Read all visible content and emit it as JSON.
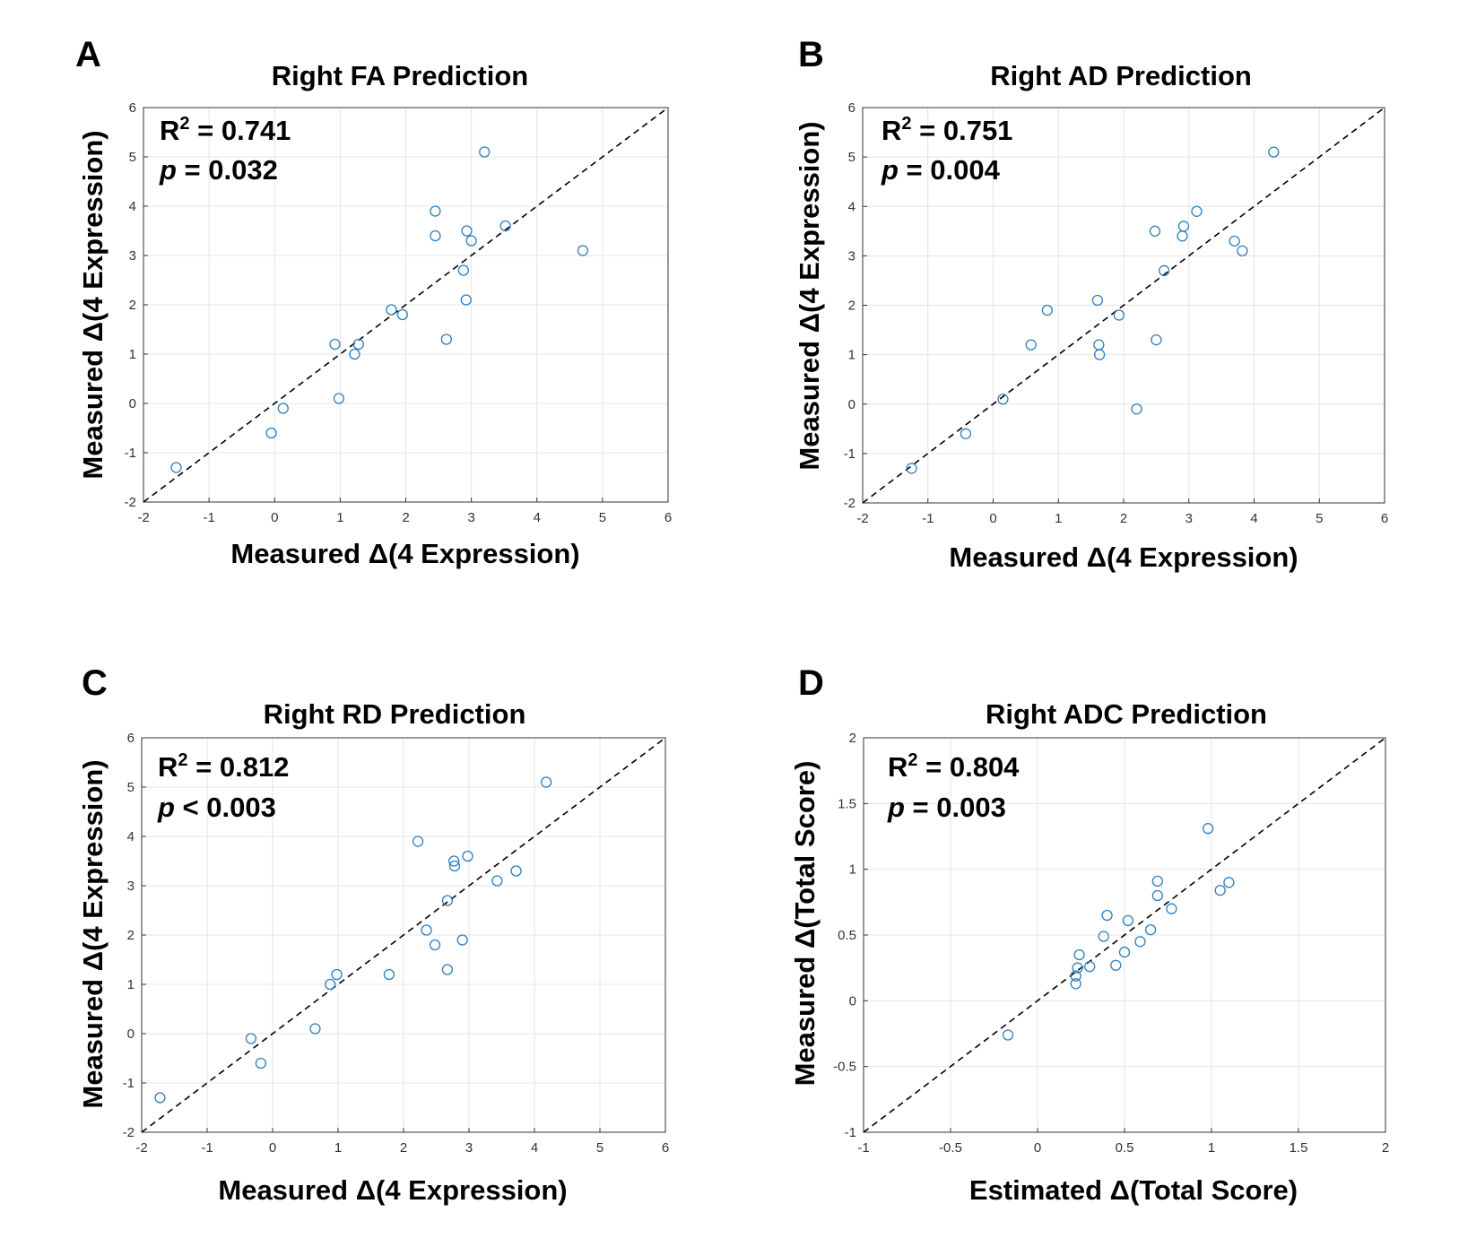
{
  "chart_data": [
    {
      "panel": "A",
      "type": "scatter",
      "title": "Right FA Prediction",
      "xlabel": "Measured Δ(4 Expression)",
      "ylabel": "Measured Δ(4 Expression)",
      "xlim": [
        -2,
        6
      ],
      "ylim": [
        -2,
        6
      ],
      "xticks": [
        -2,
        -1,
        0,
        1,
        2,
        3,
        4,
        5,
        6
      ],
      "yticks": [
        -2,
        -1,
        0,
        1,
        2,
        3,
        4,
        5,
        6
      ],
      "xtick_labels": [
        "-2",
        "-1",
        "0",
        "1",
        "2",
        "3",
        "4",
        "5",
        "6"
      ],
      "ytick_labels": [
        "-2",
        "-1",
        "0",
        "1",
        "2",
        "3",
        "4",
        "5",
        "6"
      ],
      "grid": true,
      "reference_line": "y = x (dashed)",
      "stats": {
        "r2_label": "R",
        "r2_sup": "2",
        "r2_value": " = 0.741",
        "p_label": "p",
        "p_value": " = 0.032"
      },
      "x": [
        -1.5,
        -0.05,
        0.13,
        0.92,
        0.98,
        1.22,
        1.28,
        1.78,
        1.95,
        2.45,
        2.45,
        2.62,
        2.88,
        2.92,
        2.93,
        3.0,
        3.2,
        3.52,
        4.7
      ],
      "y": [
        -1.3,
        -0.6,
        -0.1,
        1.2,
        0.1,
        1.0,
        1.2,
        1.9,
        1.8,
        3.9,
        3.4,
        1.3,
        2.7,
        2.1,
        3.5,
        3.3,
        5.1,
        3.6,
        3.1
      ]
    },
    {
      "panel": "B",
      "type": "scatter",
      "title": "Right AD Prediction",
      "xlabel": "Measured Δ(4 Expression)",
      "ylabel": "Measured Δ(4 Expression)",
      "xlim": [
        -2,
        6
      ],
      "ylim": [
        -2,
        6
      ],
      "xticks": [
        -2,
        -1,
        0,
        1,
        2,
        3,
        4,
        5,
        6
      ],
      "yticks": [
        -2,
        -1,
        0,
        1,
        2,
        3,
        4,
        5,
        6
      ],
      "xtick_labels": [
        "-2",
        "-1",
        "0",
        "1",
        "2",
        "3",
        "4",
        "5",
        "6"
      ],
      "ytick_labels": [
        "-2",
        "-1",
        "0",
        "1",
        "2",
        "3",
        "4",
        "5",
        "6"
      ],
      "grid": true,
      "reference_line": "y = x (dashed)",
      "stats": {
        "r2_label": "R",
        "r2_sup": "2",
        "r2_value": " = 0.751",
        "p_label": "p",
        "p_value": " = 0.004"
      },
      "x": [
        -1.25,
        -0.42,
        0.15,
        0.58,
        0.83,
        1.6,
        1.62,
        1.63,
        1.93,
        2.2,
        2.48,
        2.5,
        2.62,
        2.9,
        2.92,
        3.12,
        3.7,
        3.82,
        4.3
      ],
      "y": [
        -1.3,
        -0.6,
        0.1,
        1.2,
        1.9,
        2.1,
        1.2,
        1.0,
        1.8,
        -0.1,
        3.5,
        1.3,
        2.7,
        3.4,
        3.6,
        3.9,
        3.3,
        3.1,
        5.1
      ]
    },
    {
      "panel": "C",
      "type": "scatter",
      "title": "Right RD Prediction",
      "xlabel": "Measured Δ(4 Expression)",
      "ylabel": "Measured Δ(4 Expression)",
      "xlim": [
        -2,
        6
      ],
      "ylim": [
        -2,
        6
      ],
      "xticks": [
        -2,
        -1,
        0,
        1,
        2,
        3,
        4,
        5,
        6
      ],
      "yticks": [
        -2,
        -1,
        0,
        1,
        2,
        3,
        4,
        5,
        6
      ],
      "xtick_labels": [
        "-2",
        "-1",
        "0",
        "1",
        "2",
        "3",
        "4",
        "5",
        "6"
      ],
      "ytick_labels": [
        "-2",
        "-1",
        "0",
        "1",
        "2",
        "3",
        "4",
        "5",
        "6"
      ],
      "grid": true,
      "reference_line": "y = x (dashed)",
      "stats": {
        "r2_label": "R",
        "r2_sup": "2",
        "r2_value": " = 0.812",
        "p_label": "p",
        "p_value": " < 0.003"
      },
      "x": [
        -1.72,
        -0.33,
        -0.18,
        0.65,
        0.88,
        0.98,
        1.78,
        2.22,
        2.35,
        2.48,
        2.67,
        2.67,
        2.77,
        2.78,
        2.9,
        2.98,
        3.43,
        3.72,
        4.18
      ],
      "y": [
        -1.3,
        -0.1,
        -0.6,
        0.1,
        1.0,
        1.2,
        1.2,
        3.9,
        2.1,
        1.8,
        1.3,
        2.7,
        3.5,
        3.4,
        1.9,
        3.6,
        3.1,
        3.3,
        5.1
      ]
    },
    {
      "panel": "D",
      "type": "scatter",
      "title": "Right ADC Prediction",
      "xlabel": "Estimated Δ(Total Score)",
      "ylabel": "Measured Δ(Total Score)",
      "xlim": [
        -1,
        2
      ],
      "ylim": [
        -1,
        2
      ],
      "xticks": [
        -1,
        -0.5,
        0,
        0.5,
        1,
        1.5,
        2
      ],
      "yticks": [
        -1,
        -0.5,
        0,
        0.5,
        1,
        1.5,
        2
      ],
      "xtick_labels": [
        "-1",
        "-0.5",
        "0",
        "0.5",
        "1",
        "1.5",
        "2"
      ],
      "ytick_labels": [
        "-1",
        "-0.5",
        "0",
        "0.5",
        "1",
        "1.5",
        "2"
      ],
      "grid": true,
      "reference_line": "y = x (dashed)",
      "stats": {
        "r2_label": "R",
        "r2_sup": "2",
        "r2_value": " = 0.804",
        "p_label": "p",
        "p_value": " = 0.003"
      },
      "x": [
        -0.17,
        0.22,
        0.22,
        0.23,
        0.24,
        0.3,
        0.38,
        0.4,
        0.45,
        0.5,
        0.52,
        0.59,
        0.65,
        0.69,
        0.69,
        0.77,
        0.98,
        1.05,
        1.1
      ],
      "y": [
        -0.26,
        0.13,
        0.19,
        0.25,
        0.35,
        0.26,
        0.49,
        0.65,
        0.27,
        0.37,
        0.61,
        0.45,
        0.54,
        0.8,
        0.91,
        0.7,
        1.31,
        0.84,
        0.9
      ]
    }
  ]
}
